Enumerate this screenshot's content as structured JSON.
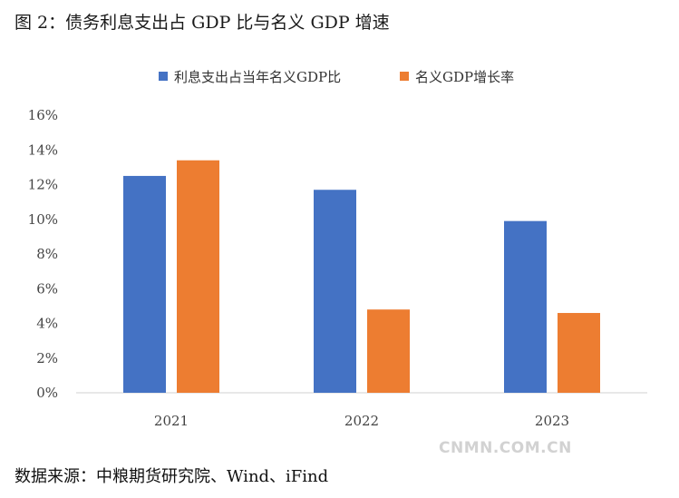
{
  "figure": {
    "title": "图 2：债务利息支出占 GDP 比与名义 GDP 增速",
    "source": "数据来源：中粮期货研究院、Wind、iFind",
    "watermark": "CNMN.COM.CN"
  },
  "chart_data": {
    "type": "bar",
    "title": "图 2：债务利息支出占 GDP 比与名义 GDP 增速",
    "categories": [
      "2021",
      "2022",
      "2023"
    ],
    "series": [
      {
        "name": "利息支出占当年名义GDP比",
        "values": [
          12.5,
          11.7,
          9.9
        ],
        "color": "#4472C4"
      },
      {
        "name": "名义GDP增长率",
        "values": [
          13.4,
          4.8,
          4.6
        ],
        "color": "#ED7D31"
      }
    ],
    "ylim": [
      0,
      16
    ],
    "yticks": [
      0,
      2,
      4,
      6,
      8,
      10,
      12,
      14,
      16
    ],
    "ytick_labels": [
      "0%",
      "2%",
      "4%",
      "6%",
      "8%",
      "10%",
      "12%",
      "14%",
      "16%"
    ],
    "xlabel": "",
    "ylabel": "",
    "grid": false,
    "legend_position": "top"
  }
}
